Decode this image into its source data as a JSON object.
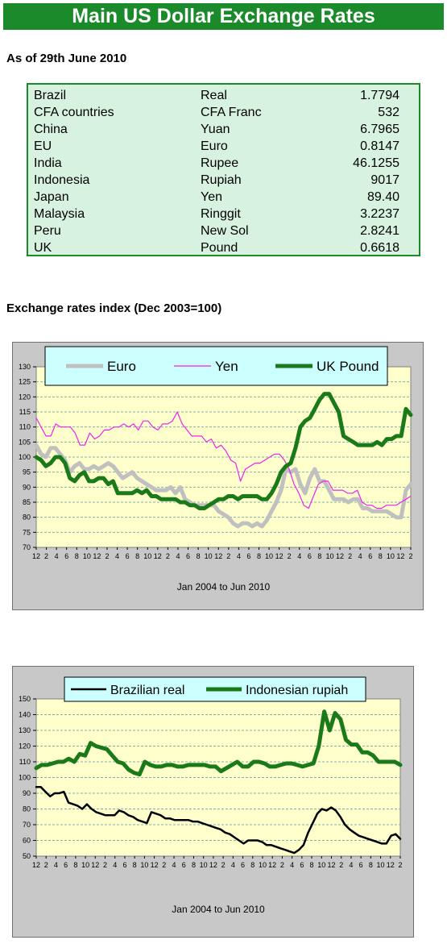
{
  "page": {
    "title": "Main US Dollar Exchange Rates",
    "as_of": "As of 29th June 2010",
    "index_heading": "Exchange rates index (Dec 2003=100)"
  },
  "rates_table": {
    "rows": [
      {
        "country": "Brazil",
        "currency": "Real",
        "value": "1.7794"
      },
      {
        "country": "CFA countries",
        "currency": "CFA Franc",
        "value": "532"
      },
      {
        "country": "China",
        "currency": "Yuan",
        "value": "6.7965"
      },
      {
        "country": "EU",
        "currency": "Euro",
        "value": "0.8147"
      },
      {
        "country": "India",
        "currency": "Rupee",
        "value": "46.1255"
      },
      {
        "country": "Indonesia",
        "currency": "Rupiah",
        "value": "9017"
      },
      {
        "country": "Japan",
        "currency": "Yen",
        "value": "89.40"
      },
      {
        "country": "Malaysia",
        "currency": "Ringgit",
        "value": "3.2237"
      },
      {
        "country": "Peru",
        "currency": "New Sol",
        "value": "2.8241"
      },
      {
        "country": "UK",
        "currency": "Pound",
        "value": "0.6618"
      }
    ]
  },
  "chart_data": [
    {
      "type": "line",
      "xlabel": "Jan 2004 to Jun 2010",
      "x_tick_labels": [
        "12",
        "2",
        "4",
        "6",
        "8",
        "10",
        "12",
        "2",
        "4",
        "6",
        "8",
        "10",
        "12",
        "2",
        "4",
        "6",
        "8",
        "10",
        "12",
        "2",
        "4",
        "6",
        "8",
        "10",
        "12",
        "2",
        "4",
        "6",
        "8",
        "10",
        "12",
        "2",
        "4",
        "6",
        "8",
        "10",
        "12",
        "2"
      ],
      "ylim": [
        70,
        130
      ],
      "yticks": [
        70,
        75,
        80,
        85,
        90,
        95,
        100,
        105,
        110,
        115,
        120,
        125,
        130
      ],
      "grid": true,
      "legend_position": "top",
      "colors": {
        "plot_bg": "#ffffcc",
        "gridline": "#7fb0b0",
        "legend_bg": "#ccffff"
      },
      "series": [
        {
          "name": "Euro",
          "color": "#c0c0c0",
          "width": 5,
          "values": [
            104,
            101,
            100,
            103,
            103,
            101,
            99,
            95,
            97,
            98,
            96,
            96,
            97,
            96,
            97,
            98,
            97,
            95,
            93,
            94,
            95,
            93,
            92,
            91,
            90,
            89,
            89,
            89,
            90,
            88,
            90,
            86,
            85,
            84,
            84,
            84,
            84,
            84,
            82,
            81,
            80,
            78,
            77,
            78,
            78,
            77,
            78,
            77,
            79,
            82,
            85,
            89,
            96,
            95,
            96,
            91,
            88,
            93,
            96,
            92,
            92,
            89,
            86,
            86,
            86,
            85,
            86,
            86,
            83,
            83,
            82,
            82,
            82,
            82,
            81,
            80,
            80,
            89,
            91
          ]
        },
        {
          "name": "Yen",
          "color": "#ee22ee",
          "width": 1.2,
          "values": [
            113,
            110,
            107,
            107,
            111,
            110,
            110,
            110,
            108,
            104,
            104,
            108,
            106,
            107,
            109,
            109,
            110,
            110,
            111,
            110,
            111,
            109,
            112,
            112,
            110,
            109,
            111,
            111,
            112,
            115,
            111,
            109,
            107,
            107,
            107,
            105,
            106,
            103,
            104,
            102,
            99,
            98,
            92,
            96,
            97,
            98,
            98,
            99,
            100,
            101,
            101,
            99,
            96,
            91,
            88,
            84,
            83,
            87,
            91,
            92,
            92,
            89,
            89,
            89,
            88,
            88,
            89,
            85,
            84,
            84,
            83,
            83,
            84,
            84,
            84,
            85,
            86,
            87
          ]
        },
        {
          "name": "UK Pound",
          "color": "#1a7a1a",
          "width": 5,
          "values": [
            100,
            99,
            97,
            98,
            100,
            100,
            98,
            93,
            92,
            94,
            95,
            92,
            92,
            93,
            93,
            91,
            92,
            88,
            88,
            88,
            88,
            89,
            88,
            89,
            87,
            87,
            86,
            86,
            86,
            86,
            85,
            85,
            84,
            84,
            83,
            83,
            84,
            85,
            86,
            86,
            87,
            87,
            86,
            87,
            87,
            87,
            87,
            86,
            86,
            88,
            91,
            95,
            97,
            98,
            103,
            110,
            112,
            113,
            116,
            119,
            121,
            121,
            118,
            115,
            107,
            106,
            105,
            104,
            104,
            104,
            104,
            105,
            104,
            106,
            106,
            107,
            107,
            116,
            114
          ]
        }
      ]
    },
    {
      "type": "line",
      "xlabel": "Jan 2004 to Jun 2010",
      "x_tick_labels": [
        "12",
        "2",
        "4",
        "6",
        "8",
        "10",
        "12",
        "2",
        "4",
        "6",
        "8",
        "10",
        "12",
        "2",
        "4",
        "6",
        "8",
        "10",
        "12",
        "2",
        "4",
        "6",
        "8",
        "10",
        "12",
        "2",
        "4",
        "6",
        "8",
        "10",
        "12",
        "2",
        "4",
        "6",
        "8",
        "10",
        "12",
        "2"
      ],
      "ylim": [
        50,
        150
      ],
      "yticks": [
        50,
        60,
        70,
        80,
        90,
        100,
        110,
        120,
        130,
        140,
        150
      ],
      "grid": true,
      "legend_position": "top",
      "colors": {
        "plot_bg": "#ffffcc",
        "gridline": "#7fb0b0",
        "legend_bg": "#ccffff"
      },
      "series": [
        {
          "name": "Brazilian real",
          "color": "#000000",
          "width": 2.5,
          "values": [
            94,
            94,
            91,
            88,
            90,
            90,
            91,
            84,
            83,
            82,
            80,
            83,
            80,
            78,
            77,
            76,
            76,
            76,
            79,
            78,
            76,
            75,
            73,
            72,
            71,
            78,
            77,
            76,
            74,
            74,
            73,
            73,
            73,
            73,
            72,
            72,
            71,
            70,
            69,
            68,
            67,
            65,
            64,
            62,
            60,
            58,
            60,
            60,
            60,
            59,
            57,
            57,
            56,
            55,
            54,
            53,
            52,
            54,
            57,
            65,
            71,
            77,
            80,
            79,
            81,
            79,
            75,
            70,
            67,
            65,
            63,
            62,
            61,
            60,
            59,
            58,
            58,
            63,
            64,
            61
          ]
        },
        {
          "name": "Indonesian rupiah",
          "color": "#1a7a1a",
          "width": 5,
          "values": [
            106,
            108,
            108,
            109,
            110,
            110,
            112,
            110,
            115,
            114,
            122,
            120,
            119,
            118,
            114,
            110,
            109,
            105,
            103,
            102,
            110,
            108,
            107,
            107,
            108,
            108,
            107,
            107,
            108,
            108,
            108,
            108,
            107,
            107,
            104,
            106,
            108,
            110,
            107,
            107,
            110,
            110,
            109,
            107,
            107,
            108,
            109,
            109,
            108,
            107,
            108,
            109,
            120,
            142,
            130,
            141,
            137,
            124,
            121,
            121,
            116,
            116,
            114,
            110,
            110,
            110,
            110,
            108
          ]
        }
      ]
    }
  ]
}
